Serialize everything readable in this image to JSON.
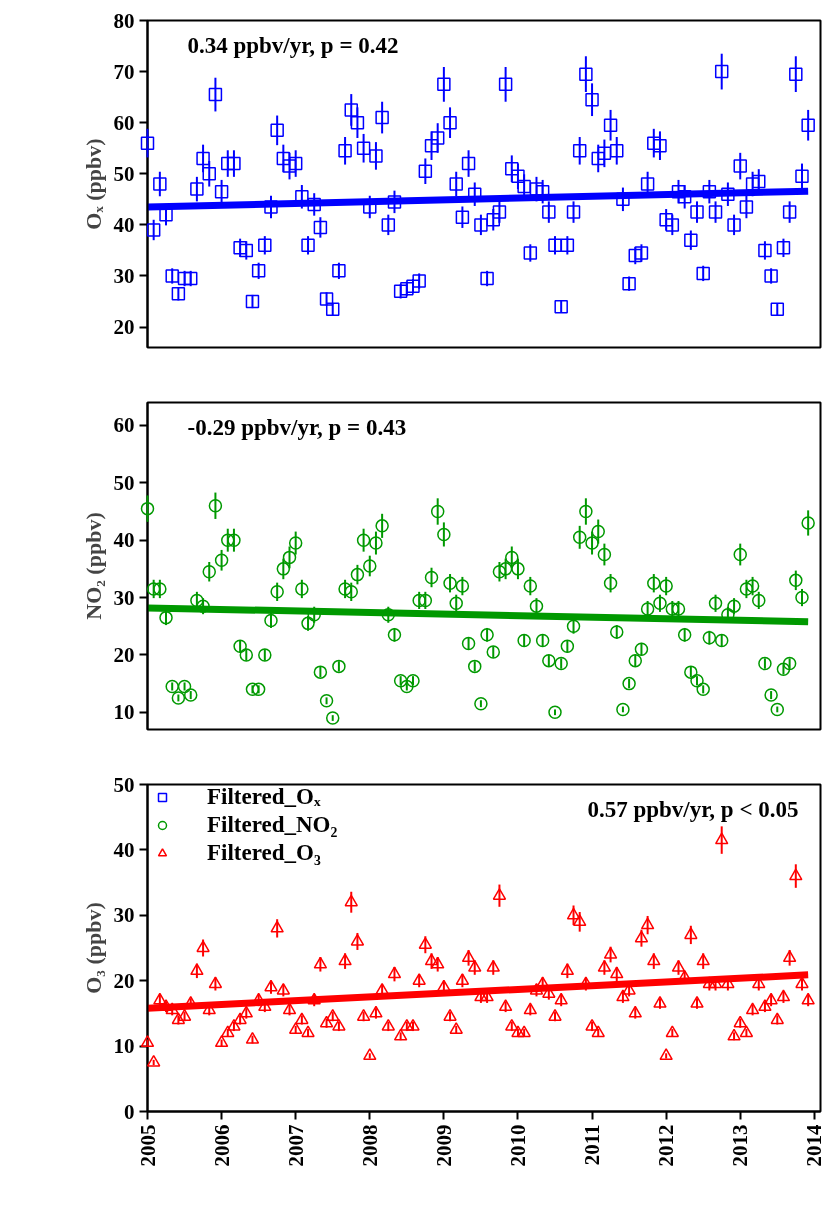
{
  "chart_data": [
    {
      "type": "scatter",
      "ylabel": "Oₓ (ppbv)",
      "xlim": [
        "2005-01",
        "2014-02"
      ],
      "xticks": [
        "2005",
        "2006",
        "2007",
        "2008",
        "2009",
        "2010",
        "2011",
        "2012",
        "2013",
        "2014"
      ],
      "ylim": [
        16,
        80
      ],
      "yticks": [
        20,
        30,
        40,
        50,
        60,
        70,
        80
      ],
      "tick_labels": "y",
      "grid": false,
      "annotations": [
        "0.34 ppbv/yr, p = 0.42"
      ],
      "x": [
        "2005-01",
        "2005-02",
        "2005-03",
        "2005-04",
        "2005-05",
        "2005-06",
        "2005-07",
        "2005-08",
        "2005-09",
        "2005-10",
        "2005-11",
        "2005-12",
        "2006-01",
        "2006-02",
        "2006-03",
        "2006-04",
        "2006-05",
        "2006-06",
        "2006-07",
        "2006-08",
        "2006-09",
        "2006-10",
        "2006-11",
        "2006-12",
        "2007-01",
        "2007-02",
        "2007-03",
        "2007-04",
        "2007-05",
        "2007-06",
        "2007-07",
        "2007-08",
        "2007-09",
        "2007-10",
        "2007-11",
        "2007-12",
        "2008-01",
        "2008-02",
        "2008-03",
        "2008-04",
        "2008-05",
        "2008-06",
        "2008-07",
        "2008-08",
        "2008-09",
        "2008-10",
        "2008-11",
        "2008-12",
        "2009-01",
        "2009-02",
        "2009-03",
        "2009-04",
        "2009-05",
        "2009-06",
        "2009-07",
        "2009-08",
        "2009-09",
        "2009-10",
        "2009-11",
        "2009-12",
        "2010-01",
        "2010-02",
        "2010-03",
        "2010-04",
        "2010-05",
        "2010-06",
        "2010-07",
        "2010-08",
        "2010-09",
        "2010-10",
        "2010-11",
        "2010-12",
        "2011-01",
        "2011-02",
        "2011-03",
        "2011-04",
        "2011-05",
        "2011-06",
        "2011-07",
        "2011-08",
        "2011-09",
        "2011-10",
        "2011-11",
        "2011-12",
        "2012-01",
        "2012-02",
        "2012-03",
        "2012-04",
        "2012-05",
        "2012-06",
        "2012-07",
        "2012-08",
        "2012-09",
        "2012-10",
        "2012-11",
        "2012-12",
        "2013-01",
        "2013-02",
        "2013-03",
        "2013-04",
        "2013-05",
        "2013-06",
        "2013-07",
        "2013-08",
        "2013-09",
        "2013-10",
        "2013-11",
        "2013-12"
      ],
      "series": [
        {
          "name": "Filtered_Oₓ",
          "marker": "square",
          "color": "#0000ff",
          "values": [
            56,
            39,
            48,
            42,
            30,
            26.5,
            29.5,
            29.5,
            47,
            53,
            50,
            65.5,
            46.5,
            52,
            52,
            35.5,
            35,
            25,
            31,
            36,
            43.5,
            58.5,
            53,
            51.5,
            52,
            45.5,
            36,
            44,
            39.5,
            25.5,
            23.5,
            31,
            54.5,
            62.5,
            60,
            55,
            43.5,
            53.5,
            61,
            40,
            44.5,
            27,
            27.5,
            28,
            29,
            50.5,
            55.5,
            57,
            67.5,
            60,
            48,
            41.5,
            52,
            46,
            40,
            29.5,
            41,
            42.5,
            67.5,
            51,
            49.5,
            47.5,
            34.5,
            47,
            46.5,
            42.5,
            36,
            24,
            36,
            42.5,
            54.5,
            69.5,
            64.5,
            53,
            54,
            59.5,
            54.5,
            45,
            28.5,
            34,
            34.5,
            48,
            56,
            55.5,
            41,
            40,
            46.5,
            45.5,
            37,
            42.5,
            30.5,
            46.5,
            42.5,
            70,
            46,
            40,
            51.5,
            43.5,
            48,
            48.5,
            35,
            30,
            23.5,
            35.5,
            42.5,
            69.5,
            49.5,
            59.5
          ],
          "errors": [
            2.8,
            2.0,
            2.4,
            2.1,
            1.5,
            1.3,
            1.5,
            1.5,
            2.4,
            2.7,
            2.5,
            3.3,
            2.3,
            2.6,
            2.6,
            1.8,
            1.8,
            1.3,
            1.6,
            1.8,
            2.2,
            2.9,
            2.7,
            2.6,
            2.6,
            2.3,
            1.8,
            2.2,
            2.0,
            1.3,
            1.2,
            1.6,
            2.7,
            3.1,
            3.0,
            2.8,
            2.2,
            2.7,
            3.1,
            2.0,
            2.2,
            1.4,
            1.4,
            1.4,
            1.5,
            2.5,
            2.8,
            2.9,
            3.4,
            3.0,
            2.4,
            2.1,
            2.6,
            2.3,
            2.0,
            1.5,
            2.1,
            2.1,
            3.4,
            2.6,
            2.5,
            2.4,
            1.7,
            2.4,
            2.3,
            2.1,
            1.8,
            1.2,
            1.8,
            2.1,
            2.7,
            3.5,
            3.2,
            2.7,
            2.7,
            3.0,
            2.7,
            2.3,
            1.4,
            1.7,
            1.7,
            2.4,
            2.8,
            2.8,
            2.1,
            2.0,
            2.3,
            2.3,
            1.9,
            2.1,
            1.5,
            2.3,
            2.1,
            3.5,
            2.3,
            2.0,
            2.6,
            2.2,
            2.4,
            2.4,
            1.8,
            1.5,
            1.2,
            1.8,
            2.1,
            3.5,
            2.5,
            3.0
          ]
        },
        {
          "type": "line",
          "color": "#0000ff",
          "x": [
            "2005-01",
            "2013-12"
          ],
          "values": [
            43.5,
            46.6
          ]
        }
      ]
    },
    {
      "type": "scatter",
      "ylabel": "NO₂ (ppbv)",
      "xlim": [
        "2005-01",
        "2014-02"
      ],
      "xticks": [
        "2005",
        "2006",
        "2007",
        "2008",
        "2009",
        "2010",
        "2011",
        "2012",
        "2013",
        "2014"
      ],
      "ylim": [
        7,
        64
      ],
      "yticks": [
        10,
        20,
        30,
        40,
        50,
        60
      ],
      "tick_labels": "y",
      "grid": false,
      "annotations": [
        "-0.29 ppbv/yr, p = 0.43"
      ],
      "x": [
        "2005-01",
        "2005-02",
        "2005-03",
        "2005-04",
        "2005-05",
        "2005-06",
        "2005-07",
        "2005-08",
        "2005-09",
        "2005-10",
        "2005-11",
        "2005-12",
        "2006-01",
        "2006-02",
        "2006-03",
        "2006-04",
        "2006-05",
        "2006-06",
        "2006-07",
        "2006-08",
        "2006-09",
        "2006-10",
        "2006-11",
        "2006-12",
        "2007-01",
        "2007-02",
        "2007-03",
        "2007-04",
        "2007-05",
        "2007-06",
        "2007-07",
        "2007-08",
        "2007-09",
        "2007-10",
        "2007-11",
        "2007-12",
        "2008-01",
        "2008-02",
        "2008-03",
        "2008-04",
        "2008-05",
        "2008-06",
        "2008-07",
        "2008-08",
        "2008-09",
        "2008-10",
        "2008-11",
        "2008-12",
        "2009-01",
        "2009-02",
        "2009-03",
        "2009-04",
        "2009-05",
        "2009-06",
        "2009-07",
        "2009-08",
        "2009-09",
        "2009-10",
        "2009-11",
        "2009-12",
        "2010-01",
        "2010-02",
        "2010-03",
        "2010-04",
        "2010-05",
        "2010-06",
        "2010-07",
        "2010-08",
        "2010-09",
        "2010-10",
        "2010-11",
        "2010-12",
        "2011-01",
        "2011-02",
        "2011-03",
        "2011-04",
        "2011-05",
        "2011-06",
        "2011-07",
        "2011-08",
        "2011-09",
        "2011-10",
        "2011-11",
        "2011-12",
        "2012-01",
        "2012-02",
        "2012-03",
        "2012-04",
        "2012-05",
        "2012-06",
        "2012-07",
        "2012-08",
        "2012-09",
        "2012-10",
        "2012-11",
        "2012-12",
        "2013-01",
        "2013-02",
        "2013-03",
        "2013-04",
        "2013-05",
        "2013-06",
        "2013-07",
        "2013-08",
        "2013-09",
        "2013-10",
        "2013-11",
        "2013-12"
      ],
      "series": [
        {
          "name": "Filtered_NO₂",
          "marker": "circle",
          "color": "#009900",
          "values": [
            45.5,
            31.5,
            31.5,
            26.5,
            14.5,
            12.5,
            14.5,
            13,
            29.5,
            28.5,
            34.5,
            46,
            36.5,
            40,
            40,
            21.5,
            20,
            14,
            14,
            20,
            26,
            31,
            35,
            37,
            39.5,
            31.5,
            25.5,
            27,
            17,
            12,
            9,
            18,
            31.5,
            31,
            34,
            40,
            35.5,
            39.5,
            42.5,
            27,
            23.5,
            15.5,
            14.5,
            15.5,
            29.5,
            29.5,
            33.5,
            45,
            41,
            32.5,
            29,
            32,
            22,
            18,
            11.5,
            23.5,
            20.5,
            34.5,
            35,
            37,
            35,
            22.5,
            32,
            28.5,
            22.5,
            19,
            10,
            18.5,
            21.5,
            25,
            40.5,
            45,
            39.5,
            41.5,
            37.5,
            32.5,
            24,
            10.5,
            15,
            19,
            21,
            28,
            32.5,
            29,
            32,
            28,
            28,
            23.5,
            17,
            15.5,
            14,
            23,
            29,
            22.5,
            27,
            28.5,
            37.5,
            31.5,
            32,
            29.5,
            18.5,
            13,
            10.5,
            17.5,
            18.5,
            33,
            30,
            43
          ],
          "errors": [
            2.3,
            1.6,
            1.6,
            1.3,
            0.7,
            0.6,
            0.7,
            0.7,
            1.5,
            1.4,
            1.7,
            2.3,
            1.8,
            2.0,
            2.0,
            1.1,
            1.0,
            0.7,
            0.7,
            1.0,
            1.3,
            1.6,
            1.8,
            1.9,
            2.0,
            1.6,
            1.3,
            1.4,
            0.9,
            0.6,
            0.5,
            0.9,
            1.6,
            1.6,
            1.7,
            2.0,
            1.8,
            2.0,
            2.1,
            1.4,
            1.2,
            0.8,
            0.7,
            0.8,
            1.5,
            1.5,
            1.7,
            2.3,
            2.1,
            1.6,
            1.5,
            1.6,
            1.1,
            0.9,
            0.6,
            1.2,
            1.0,
            1.7,
            1.8,
            1.9,
            1.8,
            1.1,
            1.6,
            1.4,
            1.1,
            1.0,
            0.5,
            0.9,
            1.1,
            1.3,
            2.0,
            2.3,
            2.0,
            2.1,
            1.9,
            1.6,
            1.2,
            0.5,
            0.8,
            1.0,
            1.1,
            1.4,
            1.6,
            1.5,
            1.6,
            1.4,
            1.4,
            1.2,
            0.9,
            0.8,
            0.7,
            1.2,
            1.5,
            1.1,
            1.4,
            1.4,
            1.9,
            1.6,
            1.6,
            1.5,
            0.9,
            0.7,
            0.5,
            0.9,
            0.9,
            1.7,
            1.5,
            2.2
          ]
        },
        {
          "type": "line",
          "color": "#009900",
          "x": [
            "2005-01",
            "2013-12"
          ],
          "values": [
            28.2,
            25.8
          ]
        }
      ]
    },
    {
      "type": "scatter",
      "ylabel": "O₃ (ppbv)",
      "xlim": [
        "2005-01",
        "2014-02"
      ],
      "xticks": [
        "2005",
        "2006",
        "2007",
        "2008",
        "2009",
        "2010",
        "2011",
        "2012",
        "2013",
        "2014"
      ],
      "ylim": [
        0,
        50
      ],
      "yticks": [
        0,
        10,
        20,
        30,
        40,
        50
      ],
      "grid": false,
      "legend": "top left",
      "annotations": [
        "0.57 ppbv/yr, p < 0.05"
      ],
      "x": [
        "2005-01",
        "2005-02",
        "2005-03",
        "2005-04",
        "2005-05",
        "2005-06",
        "2005-07",
        "2005-08",
        "2005-09",
        "2005-10",
        "2005-11",
        "2005-12",
        "2006-01",
        "2006-02",
        "2006-03",
        "2006-04",
        "2006-05",
        "2006-06",
        "2006-07",
        "2006-08",
        "2006-09",
        "2006-10",
        "2006-11",
        "2006-12",
        "2007-01",
        "2007-02",
        "2007-03",
        "2007-04",
        "2007-05",
        "2007-06",
        "2007-07",
        "2007-08",
        "2007-09",
        "2007-10",
        "2007-11",
        "2007-12",
        "2008-01",
        "2008-02",
        "2008-03",
        "2008-04",
        "2008-05",
        "2008-06",
        "2008-07",
        "2008-08",
        "2008-09",
        "2008-10",
        "2008-11",
        "2008-12",
        "2009-01",
        "2009-02",
        "2009-03",
        "2009-04",
        "2009-05",
        "2009-06",
        "2009-07",
        "2009-08",
        "2009-09",
        "2009-10",
        "2009-11",
        "2009-12",
        "2010-01",
        "2010-02",
        "2010-03",
        "2010-04",
        "2010-05",
        "2010-06",
        "2010-07",
        "2010-08",
        "2010-09",
        "2010-10",
        "2010-11",
        "2010-12",
        "2011-01",
        "2011-02",
        "2011-03",
        "2011-04",
        "2011-05",
        "2011-06",
        "2011-07",
        "2011-08",
        "2011-09",
        "2011-10",
        "2011-11",
        "2011-12",
        "2012-01",
        "2012-02",
        "2012-03",
        "2012-04",
        "2012-05",
        "2012-06",
        "2012-07",
        "2012-08",
        "2012-09",
        "2012-10",
        "2012-11",
        "2012-12",
        "2013-01",
        "2013-02",
        "2013-03",
        "2013-04",
        "2013-05",
        "2013-06",
        "2013-07",
        "2013-08",
        "2013-09",
        "2013-10",
        "2013-11",
        "2013-12"
      ],
      "series": [
        {
          "name": "Filtered_O₃",
          "marker": "triangle",
          "color": "#ff0000",
          "values": [
            10.5,
            7.5,
            17,
            16,
            15.5,
            14,
            14.5,
            16.5,
            21.5,
            25,
            15.5,
            19.5,
            10.5,
            12,
            13,
            14,
            15,
            11,
            17,
            16,
            19,
            28,
            18.5,
            15.5,
            12.5,
            14,
            12,
            17,
            22.5,
            13.5,
            14.5,
            13,
            23,
            32,
            26,
            14.5,
            8.5,
            15,
            18.5,
            13,
            21,
            11.5,
            13,
            13,
            20,
            25.5,
            23,
            22.5,
            19,
            14.5,
            12.5,
            20,
            23.5,
            22,
            17.5,
            17.5,
            22,
            33,
            16,
            13,
            12,
            12,
            15.5,
            18.5,
            19.5,
            18,
            14.5,
            17,
            21.5,
            30,
            29,
            19.5,
            13,
            12,
            22,
            24,
            21,
            17.5,
            18.5,
            15,
            26.5,
            28.5,
            23,
            16.5,
            8.5,
            12,
            22,
            20.5,
            27,
            16.5,
            23,
            19.5,
            19.5,
            41.5,
            19.5,
            11.5,
            13.5,
            12,
            15.5,
            19.5,
            16,
            17,
            14,
            17.5,
            23.5,
            36,
            19.5,
            17
          ],
          "errors": [
            0.5,
            0.4,
            0.9,
            0.8,
            0.8,
            0.7,
            0.7,
            0.8,
            1.1,
            1.3,
            0.8,
            1.0,
            0.5,
            0.6,
            0.7,
            0.7,
            0.8,
            0.6,
            0.9,
            0.8,
            1.0,
            1.4,
            0.9,
            0.8,
            0.6,
            0.7,
            0.6,
            0.9,
            1.1,
            0.7,
            0.7,
            0.7,
            1.2,
            1.6,
            1.3,
            0.7,
            0.4,
            0.8,
            0.9,
            0.7,
            1.1,
            0.6,
            0.7,
            0.7,
            1.0,
            1.3,
            1.2,
            1.1,
            1.0,
            0.7,
            0.6,
            1.0,
            1.2,
            1.1,
            0.9,
            0.9,
            1.1,
            1.7,
            0.8,
            0.7,
            0.6,
            0.6,
            0.8,
            0.9,
            1.0,
            0.9,
            0.7,
            0.9,
            1.1,
            1.5,
            1.5,
            1.0,
            0.7,
            0.6,
            1.1,
            1.2,
            1.1,
            0.9,
            0.9,
            0.8,
            1.3,
            1.4,
            1.2,
            0.8,
            0.4,
            0.6,
            1.1,
            1.0,
            1.4,
            0.8,
            1.2,
            1.0,
            1.0,
            2.1,
            1.0,
            0.6,
            0.7,
            0.6,
            0.8,
            1.0,
            0.8,
            0.9,
            0.7,
            0.9,
            1.2,
            1.8,
            1.0,
            0.9
          ]
        },
        {
          "type": "line",
          "color": "#ff0000",
          "x": [
            "2005-01",
            "2013-12"
          ],
          "values": [
            15.8,
            20.9
          ]
        }
      ]
    }
  ]
}
